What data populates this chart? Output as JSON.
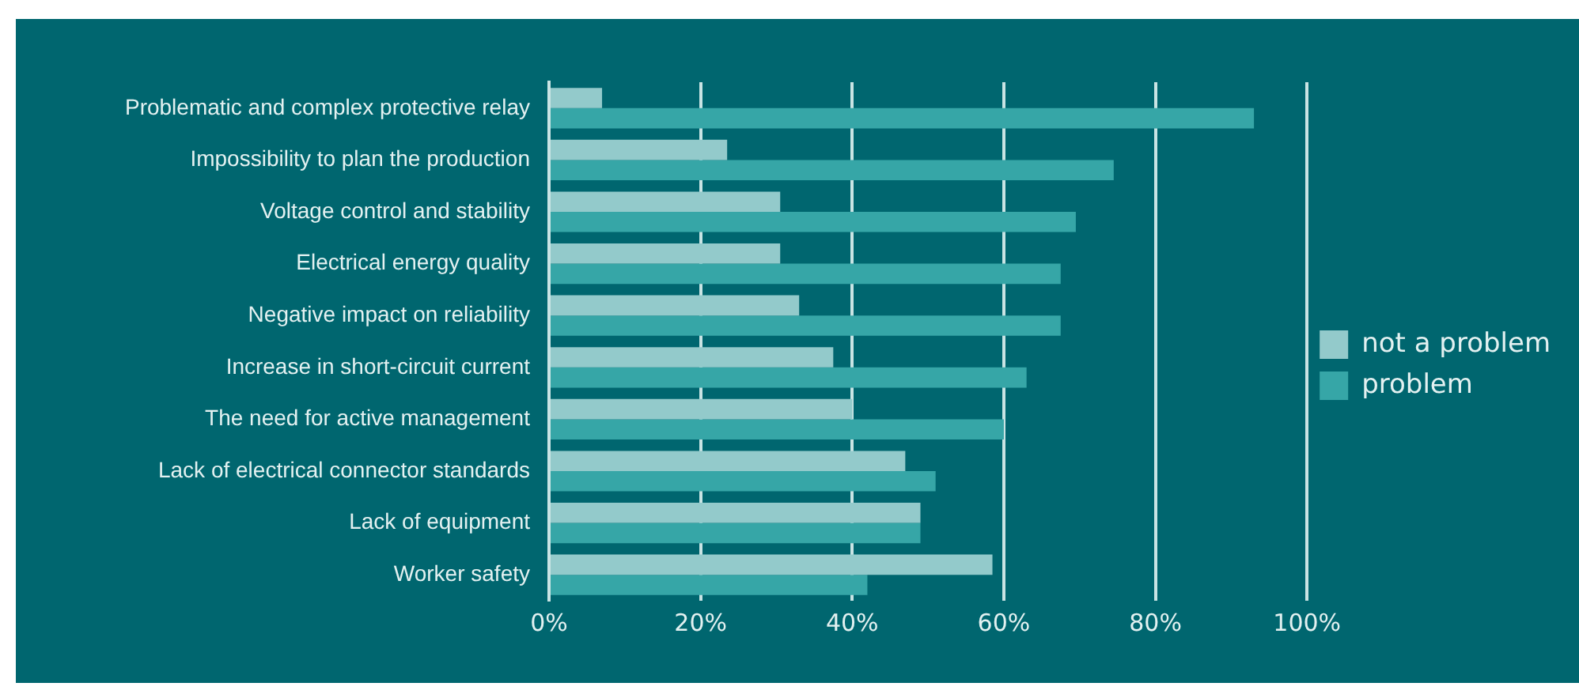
{
  "chart_data": {
    "type": "bar",
    "orientation": "horizontal",
    "categories": [
      "Problematic and complex protective relay",
      "Impossibility to plan the production",
      "Voltage control and stability",
      "Electrical energy quality",
      "Negative impact on reliability",
      "Increase in short-circuit current",
      "The need for active management",
      "Lack of electrical connector standards",
      "Lack of equipment",
      "Worker safety"
    ],
    "series": [
      {
        "name": "not a problem",
        "color": "#93cacb",
        "values": [
          7,
          23.5,
          30.5,
          30.5,
          33,
          37.5,
          40,
          47,
          49,
          58.5
        ]
      },
      {
        "name": "problem",
        "color": "#36a6a7",
        "values": [
          93,
          74.5,
          69.5,
          67.5,
          67.5,
          63,
          60,
          51,
          49,
          42
        ]
      }
    ],
    "xlim": [
      0,
      100
    ],
    "xticks": [
      {
        "value": 0,
        "label": "0%"
      },
      {
        "value": 20,
        "label": "20%"
      },
      {
        "value": 40,
        "label": "40%"
      },
      {
        "value": 60,
        "label": "60%"
      },
      {
        "value": 80,
        "label": "80%"
      },
      {
        "value": 100,
        "label": "100%"
      }
    ],
    "grid": "x",
    "legend": "right"
  }
}
